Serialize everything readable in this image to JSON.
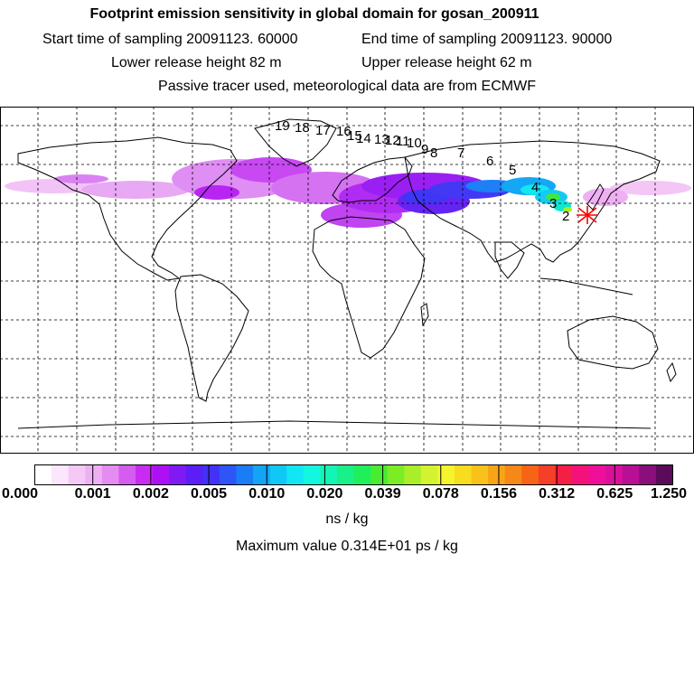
{
  "header": {
    "title": "Footprint emission sensitivity in global domain for gosan_200911",
    "start_label": "Start time of sampling 20091123. 60000",
    "end_label": "End time of sampling 20091123. 90000",
    "lower_label": "Lower release height   82 m",
    "upper_label": "Upper release height   62 m",
    "tracer_label": "Passive tracer used, meteorological data are from ECMWF"
  },
  "map": {
    "background": "#ffffff",
    "coast_color": "#000000",
    "grid_style": "dashed",
    "release_marker_color": "#ff0000",
    "trajectory_labels": [
      "19",
      "18",
      "17",
      "16",
      "15",
      "14",
      "13",
      "12",
      "11",
      "10",
      "9",
      "8",
      "7",
      "6",
      "5",
      "4",
      "3",
      "2"
    ]
  },
  "colorbar": {
    "colors": [
      "#ffffff",
      "#fbe6fb",
      "#f4c9f6",
      "#efb0f3",
      "#e58cf0",
      "#d65cf0",
      "#c82cf2",
      "#ad10f5",
      "#7f1af5",
      "#5b1ef6",
      "#4332f6",
      "#2d55f7",
      "#1a7df6",
      "#13a4f6",
      "#10c8f5",
      "#10e7f3",
      "#12f7df",
      "#14f5b5",
      "#18f08a",
      "#1fef5a",
      "#48ec32",
      "#7cec25",
      "#a8ef2a",
      "#d4f32e",
      "#f6f52c",
      "#f8dc1e",
      "#f8c21a",
      "#f7a517",
      "#f78716",
      "#f76415",
      "#f53f29",
      "#f51e45",
      "#f4127a",
      "#ef0f9a",
      "#d8109c",
      "#b80f95",
      "#8a0f7a",
      "#5a0c5a"
    ],
    "tick_labels": [
      "0.000",
      "0.001",
      "0.002",
      "0.005",
      "0.010",
      "0.020",
      "0.039",
      "0.078",
      "0.156",
      "0.312",
      "0.625",
      "1.250"
    ],
    "unit": "ns / kg"
  },
  "footer": {
    "max_value": "Maximum value  0.314E+01 ps / kg"
  }
}
